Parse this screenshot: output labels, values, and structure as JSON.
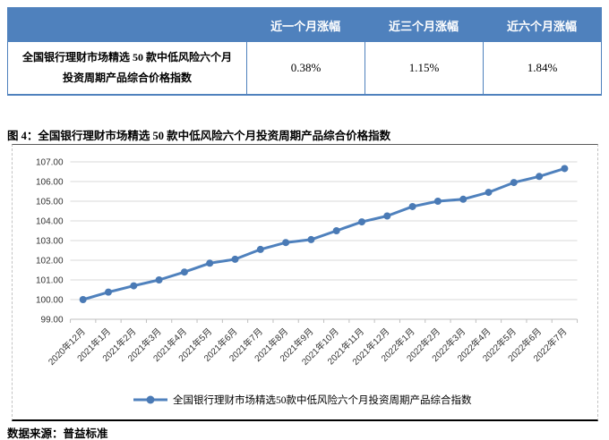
{
  "table": {
    "header": [
      "",
      "近一个月涨幅",
      "近三个月涨幅",
      "近六个月涨幅"
    ],
    "row_label": "全国银行理财市场精选 50 款中低风险六个月投资周期产品综合价格指数",
    "values": [
      "0.38%",
      "1.15%",
      "1.84%"
    ]
  },
  "figure": {
    "caption": "图 4：全国银行理财市场精选 50 款中低风险六个月投资周期产品综合价格指数",
    "source": "数据来源：普益标准"
  },
  "chart_data": {
    "type": "line",
    "title": "",
    "categories": [
      "2020年12月",
      "2021年1月",
      "2021年2月",
      "2021年3月",
      "2021年4月",
      "2021年5月",
      "2021年6月",
      "2021年7月",
      "2021年8月",
      "2021年9月",
      "2021年10月",
      "2021年11月",
      "2021年12月",
      "2022年1月",
      "2022年2月",
      "2022年3月",
      "2022年4月",
      "2022年5月",
      "2022年6月",
      "2022年7月"
    ],
    "series": [
      {
        "name": "全国银行理财市场精选50款中低风险六个月投资周期产品综合指数",
        "values": [
          100.0,
          100.38,
          100.7,
          101.0,
          101.4,
          101.85,
          102.05,
          102.55,
          102.9,
          103.05,
          103.5,
          103.95,
          104.25,
          104.73,
          105.0,
          105.1,
          105.45,
          105.95,
          106.26,
          106.66
        ]
      }
    ],
    "xlabel": "",
    "ylabel": "",
    "ylim": [
      99,
      107
    ],
    "ytick_step": 1,
    "grid": true,
    "legend_position": "bottom",
    "colors": {
      "line": "#4f81bd",
      "marker": "#4a7ab5",
      "gridline": "#d9d9d9",
      "axis": "#bfbfbf",
      "tick_text": "#333333"
    }
  }
}
